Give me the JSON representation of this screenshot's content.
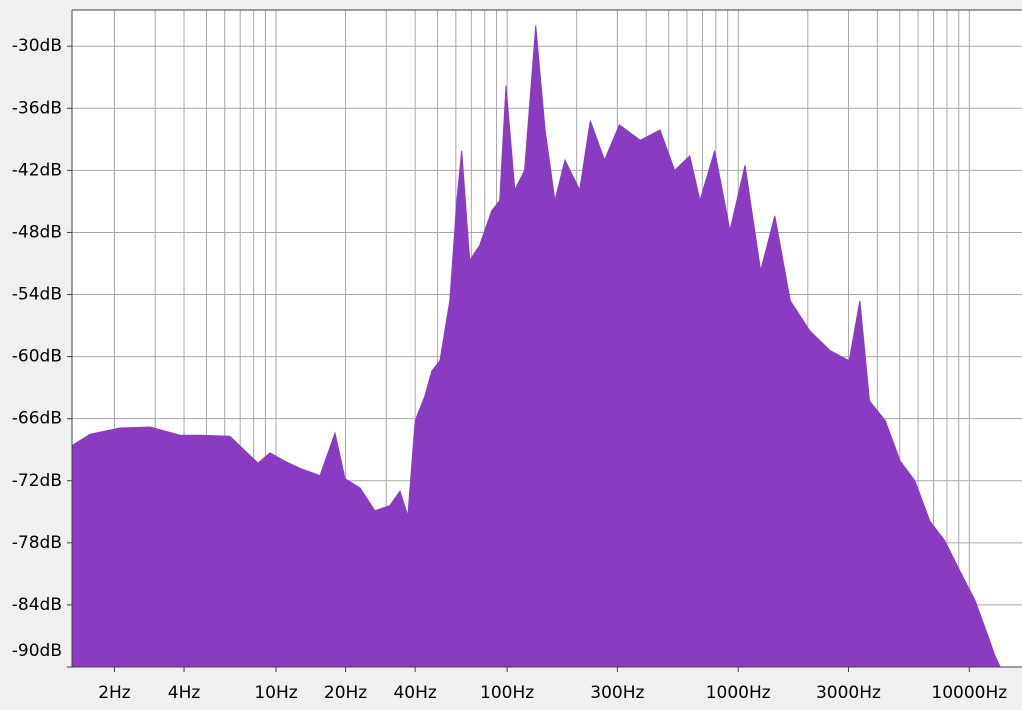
{
  "chart_data": {
    "type": "area",
    "x": [
      1.31,
      1.57,
      2.11,
      2.85,
      3.84,
      4.69,
      6.31,
      7.34,
      8.36,
      9.41,
      10.9,
      12.7,
      15.5,
      18.0,
      19.9,
      23.1,
      26.8,
      31.1,
      34.4,
      37.2,
      40.0,
      44.1,
      47.2,
      51.2,
      56.5,
      60.6,
      63.6,
      68.9,
      75.9,
      85.8,
      92.9,
      98.9,
      108,
      119,
      133,
      146,
      161,
      178,
      206,
      229,
      264,
      306,
      377,
      459,
      531,
      617,
      683,
      791,
      921,
      1070,
      1250,
      1440,
      1680,
      2040,
      2490,
      3020,
      3360,
      3700,
      4330,
      5020,
      5810,
      6750,
      7830,
      9090,
      10600,
      11600,
      12900,
      13600
    ],
    "values": [
      -68.6,
      -67.5,
      -66.9,
      -66.8,
      -67.6,
      -67.6,
      -67.7,
      -69.1,
      -70.3,
      -69.3,
      -70.1,
      -70.8,
      -71.5,
      -67.4,
      -71.8,
      -72.7,
      -74.9,
      -74.4,
      -73.0,
      -75.4,
      -66.2,
      -63.8,
      -61.4,
      -60.4,
      -54.6,
      -44.9,
      -40.1,
      -50.7,
      -49.3,
      -45.9,
      -44.9,
      -33.8,
      -43.9,
      -42.0,
      -28.0,
      -38.1,
      -44.9,
      -41.0,
      -43.9,
      -37.2,
      -41.0,
      -37.6,
      -39.1,
      -38.1,
      -42.0,
      -40.6,
      -44.9,
      -40.1,
      -47.8,
      -41.5,
      -51.7,
      -46.4,
      -54.6,
      -57.5,
      -59.4,
      -60.4,
      -54.6,
      -64.3,
      -66.2,
      -70.1,
      -72.0,
      -75.9,
      -77.8,
      -80.7,
      -83.6,
      -86.0,
      -88.9,
      -90
    ],
    "color": "#893cc1",
    "xscale": "log",
    "xlim": [
      1.31,
      16900
    ],
    "ylim": [
      -90,
      -26.5
    ],
    "xticks": [
      {
        "value": 2,
        "label": "2Hz"
      },
      {
        "value": 4,
        "label": "4Hz"
      },
      {
        "value": 10,
        "label": "10Hz"
      },
      {
        "value": 20,
        "label": "20Hz"
      },
      {
        "value": 40,
        "label": "40Hz"
      },
      {
        "value": 100,
        "label": "100Hz"
      },
      {
        "value": 300,
        "label": "300Hz"
      },
      {
        "value": 1000,
        "label": "1000Hz"
      },
      {
        "value": 3000,
        "label": "3000Hz"
      },
      {
        "value": 10000,
        "label": "10000Hz"
      }
    ],
    "xgrid": [
      2,
      3,
      4,
      5,
      6,
      7,
      8,
      9,
      10,
      20,
      30,
      40,
      50,
      60,
      70,
      80,
      90,
      100,
      200,
      300,
      400,
      500,
      600,
      700,
      800,
      900,
      1000,
      2000,
      3000,
      4000,
      5000,
      6000,
      7000,
      8000,
      9000,
      10000
    ],
    "yticks": [
      {
        "value": -30,
        "label": "-30dB"
      },
      {
        "value": -36,
        "label": "-36dB"
      },
      {
        "value": -42,
        "label": "-42dB"
      },
      {
        "value": -48,
        "label": "-48dB"
      },
      {
        "value": -54,
        "label": "-54dB"
      },
      {
        "value": -60,
        "label": "-60dB"
      },
      {
        "value": -66,
        "label": "-66dB"
      },
      {
        "value": -72,
        "label": "-72dB"
      },
      {
        "value": -78,
        "label": "-78dB"
      },
      {
        "value": -84,
        "label": "-84dB"
      },
      {
        "value": -90,
        "label": "-90dB"
      }
    ],
    "grid": true
  }
}
